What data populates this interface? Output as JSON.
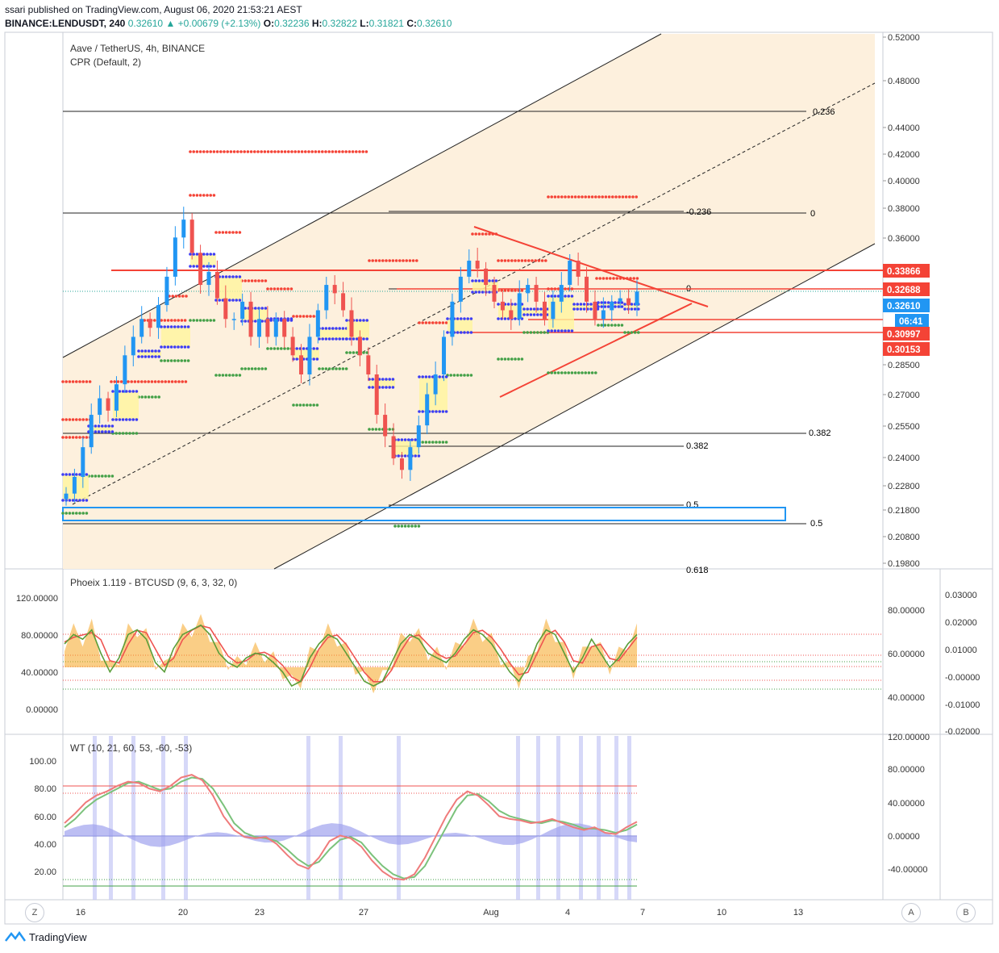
{
  "header": {
    "publish_line": "ssari published on TradingView.com, August 06, 2020 21:53:21 AEST",
    "symbol": "BINANCE:LENDUSDT, 240",
    "last": "0.32610",
    "change": "+0.00679 (+2.13%)",
    "o_label": "O:",
    "o": "0.32236",
    "h_label": "H:",
    "h": "0.32822",
    "l_label": "L:",
    "l": "0.31821",
    "c_label": "C:",
    "c": "0.32610"
  },
  "colors": {
    "up": "#26a69a",
    "down": "#ef5350",
    "channel_fill": "#fdf0dd",
    "cpr_red": "#f44336",
    "cpr_green": "#43a047",
    "cpr_blue": "#3d3df5",
    "accent_blue": "#2196f3"
  },
  "main_pane": {
    "title": "Aave / TetherUS, 4h, BINANCE",
    "indicator": "CPR (Default, 2)",
    "y_axis_ticks": [
      "0.52000",
      "0.48000",
      "0.44000",
      "0.42000",
      "0.40000",
      "0.38000",
      "0.36000",
      "0.28500",
      "0.27000",
      "0.25500",
      "0.24000",
      "0.22800",
      "0.21800",
      "0.20800",
      "0.19800"
    ],
    "price_tags": [
      {
        "text": "0.33866",
        "color": "#f44336"
      },
      {
        "text": "0.32688",
        "color": "#f44336"
      },
      {
        "text": "0.32610",
        "color": "#2196f3"
      },
      {
        "text": "06:41",
        "color": "#2196f3"
      },
      {
        "text": "0.30997",
        "color": "#f44336"
      },
      {
        "text": "0.30153",
        "color": "#f44336"
      }
    ],
    "fib_labels": {
      "a": "0.236",
      "b": "-0.236",
      "c": "0",
      "d": "0",
      "e": "0.382",
      "f": "0.382",
      "g": "0.5",
      "h": "0.5",
      "i": "0.618"
    }
  },
  "phoeix_pane": {
    "title": "Phoeix 1.119 - BTCUSD (9, 6, 3, 32, 0)",
    "left_ticks": [
      "120.00000",
      "80.00000",
      "40.00000",
      "0.00000"
    ],
    "mid_ticks": [
      "80.00000",
      "60.00000",
      "40.00000"
    ],
    "right_ticks": [
      "0.03000",
      "0.02000",
      "0.01000",
      "-0.00000",
      "-0.01000",
      "-0.02000"
    ]
  },
  "wt_pane": {
    "title": "WT (10, 21, 60, 53, -60, -53)",
    "left_ticks": [
      "100.00",
      "80.00",
      "60.00",
      "40.00",
      "20.00"
    ],
    "right_ticks": [
      "120.00000",
      "80.00000",
      "40.00000",
      "0.00000",
      "-40.00000"
    ]
  },
  "x_axis": {
    "ticks": [
      "16",
      "20",
      "23",
      "27",
      "Aug",
      "4",
      "7",
      "10",
      "13"
    ]
  },
  "corners": {
    "left": "Z",
    "right_a": "A",
    "right_b": "B"
  },
  "brand": "TradingView",
  "chart_data": [
    {
      "type": "candlestick",
      "title": "Aave / TetherUS, 4h, BINANCE",
      "ylim": [
        0.19,
        0.52
      ],
      "y_scale": "log",
      "close_approx": [
        0.225,
        0.232,
        0.245,
        0.26,
        0.268,
        0.262,
        0.275,
        0.29,
        0.3,
        0.31,
        0.305,
        0.318,
        0.335,
        0.36,
        0.372,
        0.35,
        0.33,
        0.338,
        0.322,
        0.31,
        0.31,
        0.32,
        0.3,
        0.31,
        0.3,
        0.31,
        0.3,
        0.29,
        0.28,
        0.3,
        0.315,
        0.33,
        0.325,
        0.315,
        0.3,
        0.29,
        0.28,
        0.26,
        0.25,
        0.24,
        0.235,
        0.245,
        0.255,
        0.27,
        0.28,
        0.3,
        0.32,
        0.335,
        0.345,
        0.34,
        0.33,
        0.32,
        0.315,
        0.31,
        0.325,
        0.33,
        0.32,
        0.31,
        0.32,
        0.33,
        0.345,
        0.335,
        0.32,
        0.31,
        0.315,
        0.32,
        0.322,
        0.318,
        0.326
      ],
      "levels": {
        "resistance": [
          0.33866,
          0.32688
        ],
        "support": [
          0.30997,
          0.30153
        ],
        "last": 0.3261
      },
      "annotations": [
        "0.236",
        "-0.236",
        "0",
        "0.382",
        "0.5",
        "0.618"
      ],
      "indicator": "CPR (Default, 2)"
    },
    {
      "type": "area",
      "title": "Phoeix 1.119 - BTCUSD (9, 6, 3, 32, 0)",
      "ylim": [
        -20,
        130
      ],
      "green": [
        70,
        80,
        75,
        85,
        60,
        40,
        55,
        80,
        85,
        75,
        50,
        40,
        65,
        80,
        85,
        90,
        80,
        60,
        50,
        45,
        55,
        60,
        58,
        50,
        40,
        25,
        30,
        55,
        70,
        80,
        75,
        60,
        45,
        30,
        25,
        30,
        50,
        70,
        80,
        75,
        60,
        55,
        50,
        60,
        75,
        85,
        80,
        70,
        55,
        40,
        30,
        45,
        70,
        85,
        80,
        60,
        40,
        55,
        75,
        60,
        45,
        55,
        70,
        80
      ]
    },
    {
      "type": "line",
      "title": "WT (10, 21, 60, 53, -60, -53)",
      "ylim": [
        10,
        110
      ],
      "wt1": [
        55,
        62,
        70,
        75,
        78,
        82,
        85,
        84,
        80,
        78,
        82,
        88,
        90,
        86,
        75,
        60,
        50,
        45,
        44,
        45,
        40,
        32,
        25,
        22,
        30,
        42,
        46,
        44,
        38,
        28,
        20,
        15,
        14,
        18,
        30,
        45,
        60,
        72,
        78,
        75,
        68,
        60,
        58,
        57,
        55,
        56,
        58,
        55,
        52,
        50,
        52,
        48,
        47,
        52,
        56
      ],
      "wt2": [
        52,
        58,
        66,
        72,
        76,
        80,
        84,
        85,
        82,
        79,
        80,
        85,
        88,
        87,
        80,
        68,
        55,
        48,
        45,
        44,
        42,
        36,
        29,
        24,
        27,
        36,
        43,
        45,
        41,
        32,
        24,
        18,
        15,
        16,
        24,
        38,
        52,
        66,
        75,
        76,
        71,
        64,
        60,
        58,
        56,
        55,
        57,
        56,
        54,
        51,
        51,
        50,
        48,
        50,
        54
      ]
    }
  ]
}
